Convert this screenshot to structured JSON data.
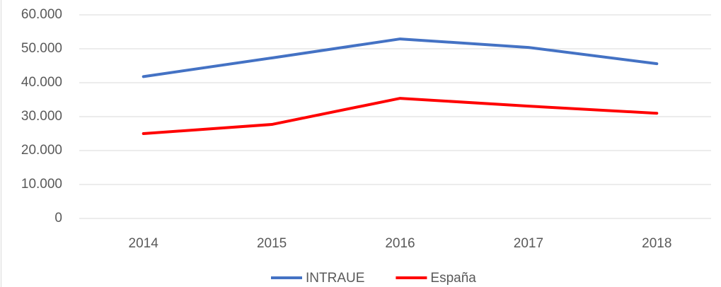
{
  "chart_data": {
    "type": "line",
    "categories": [
      "2014",
      "2015",
      "2016",
      "2017",
      "2018"
    ],
    "series": [
      {
        "name": "INTRAUE",
        "color": "#4472c4",
        "values": [
          41800,
          47300,
          52900,
          50400,
          45600
        ]
      },
      {
        "name": "España",
        "color": "#ff0000",
        "values": [
          25000,
          27700,
          35400,
          33100,
          31000
        ]
      }
    ],
    "ylim": [
      0,
      60000
    ],
    "yticks": [
      0,
      {
        "value": 10000,
        "label": "10.000"
      },
      {
        "value": 20000,
        "label": "20.000"
      },
      {
        "value": 30000,
        "label": "30.000"
      },
      {
        "value": 40000,
        "label": "40.000"
      },
      {
        "value": 50000,
        "label": "50.000"
      },
      {
        "value": 60000,
        "label": "60.000"
      }
    ],
    "grid": true,
    "legend": "bottom"
  }
}
